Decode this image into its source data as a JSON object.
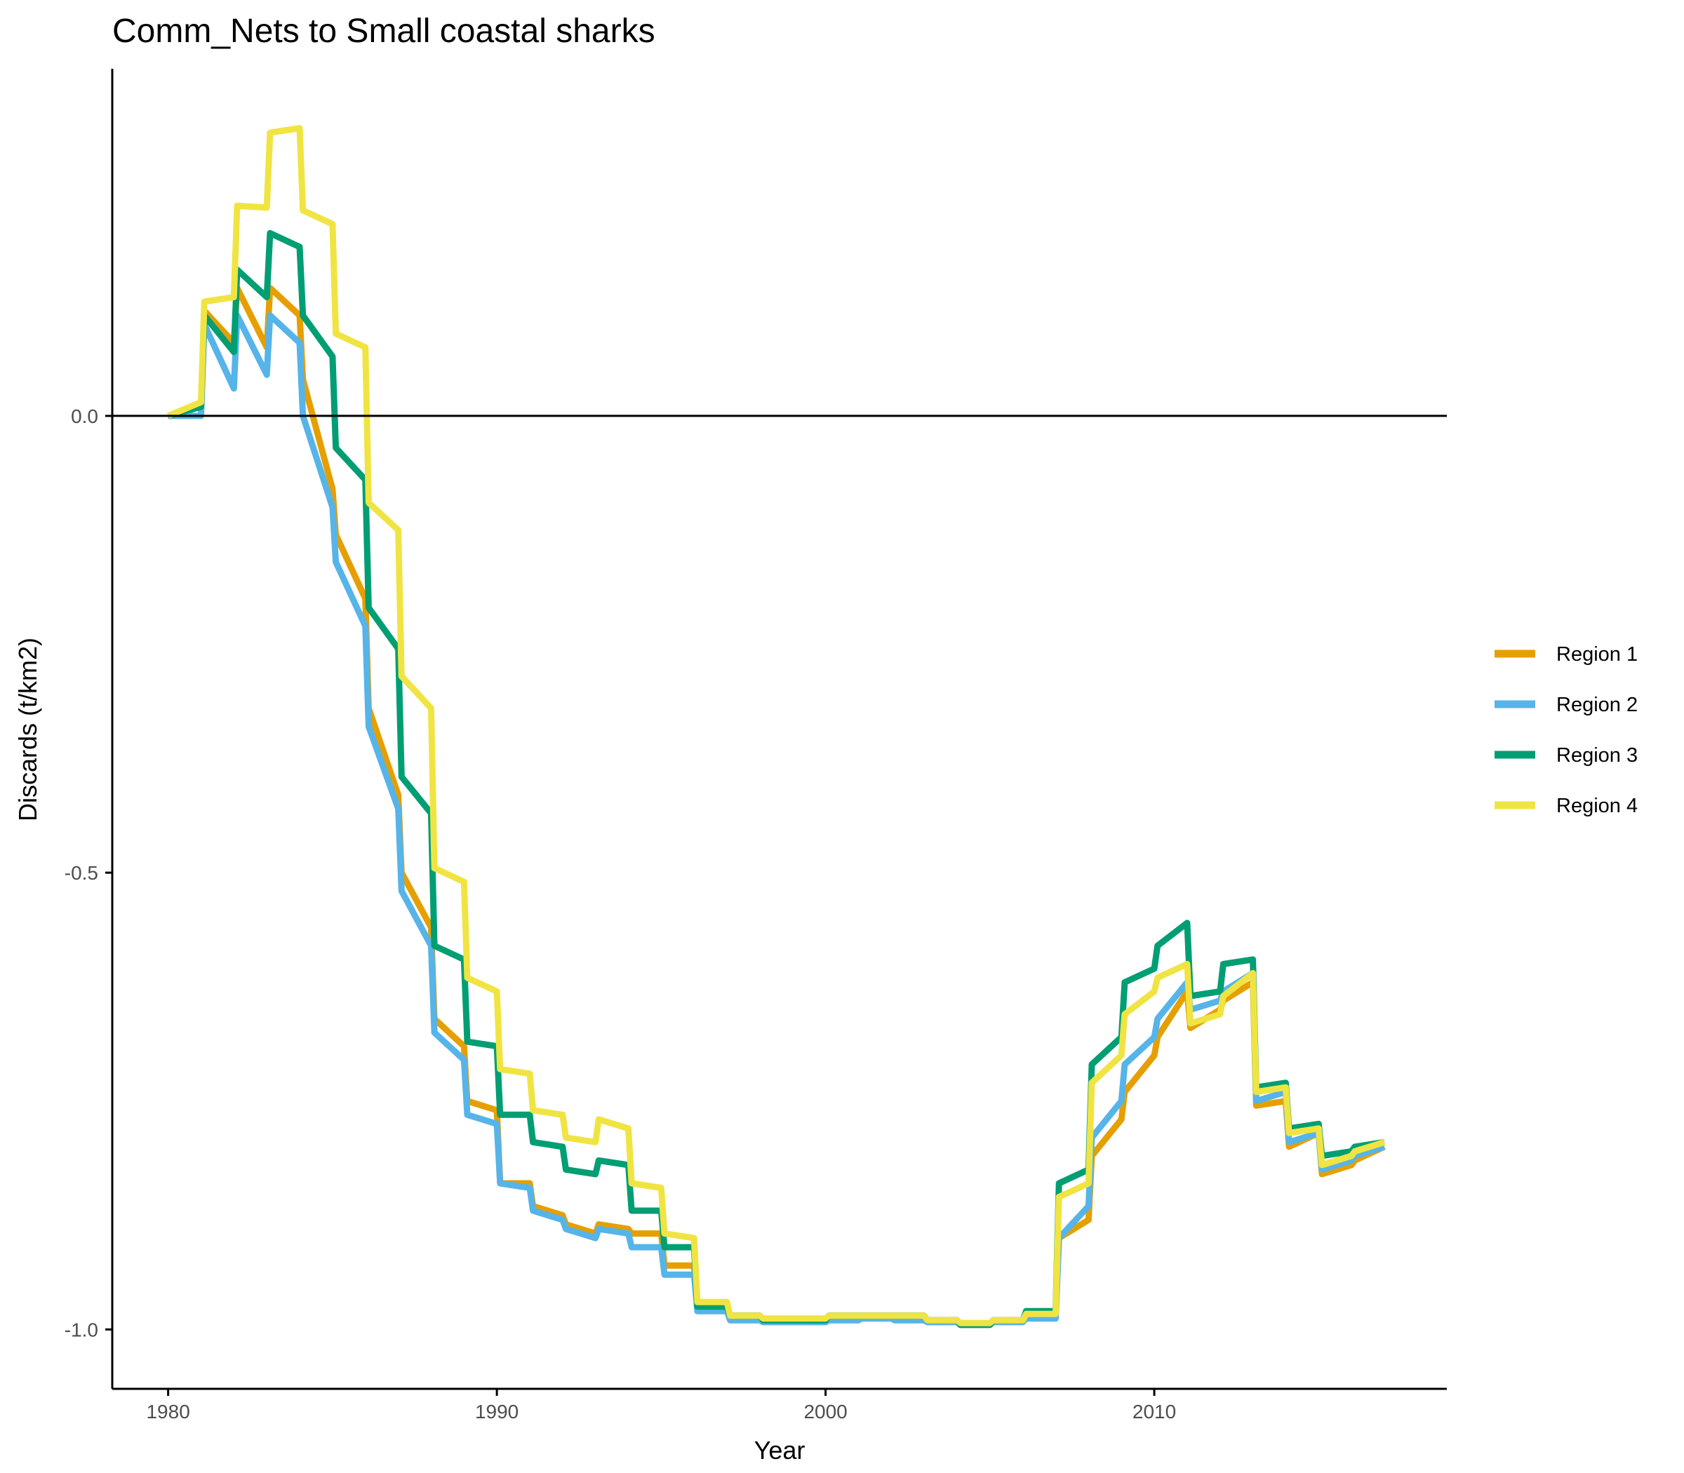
{
  "chart_data": {
    "type": "line",
    "title": "Comm_Nets to Small coastal sharks",
    "xlabel": "Year",
    "ylabel": "Discards (t/km2)",
    "xlim": [
      1978.3,
      2018.9
    ],
    "ylim": [
      -1.065,
      0.38
    ],
    "xticks": [
      1980,
      1990,
      2000,
      2010
    ],
    "xtick_labels": [
      "1980",
      "1990",
      "2000",
      "2010"
    ],
    "yticks": [
      0.0,
      -0.5,
      -1.0
    ],
    "ytick_labels": [
      "0.0",
      "-0.5",
      "-1.0"
    ],
    "hline": 0,
    "grid": false,
    "legend_position": "right",
    "series": [
      {
        "name": "Region 1",
        "color": "#E69F00",
        "points": [
          [
            1980.0,
            0.0
          ],
          [
            1981.0,
            0.01
          ],
          [
            1981.1,
            0.115
          ],
          [
            1982.0,
            0.08
          ],
          [
            1982.1,
            0.14
          ],
          [
            1983.0,
            0.075
          ],
          [
            1983.1,
            0.14
          ],
          [
            1984.0,
            0.11
          ],
          [
            1984.1,
            0.04
          ],
          [
            1985.0,
            -0.08
          ],
          [
            1985.1,
            -0.13
          ],
          [
            1986.0,
            -0.2
          ],
          [
            1986.1,
            -0.32
          ],
          [
            1987.0,
            -0.415
          ],
          [
            1987.1,
            -0.5
          ],
          [
            1988.0,
            -0.56
          ],
          [
            1988.1,
            -0.66
          ],
          [
            1989.0,
            -0.69
          ],
          [
            1989.1,
            -0.75
          ],
          [
            1990.0,
            -0.76
          ],
          [
            1990.1,
            -0.84
          ],
          [
            1991.0,
            -0.84
          ],
          [
            1991.1,
            -0.865
          ],
          [
            1992.0,
            -0.875
          ],
          [
            1992.1,
            -0.885
          ],
          [
            1993.0,
            -0.895
          ],
          [
            1993.1,
            -0.885
          ],
          [
            1994.0,
            -0.89
          ],
          [
            1994.1,
            -0.895
          ],
          [
            1995.0,
            -0.895
          ],
          [
            1995.1,
            -0.93
          ],
          [
            1996.0,
            -0.93
          ],
          [
            1996.1,
            -0.975
          ],
          [
            1997.0,
            -0.975
          ],
          [
            1997.1,
            -0.985
          ],
          [
            1998.0,
            -0.985
          ],
          [
            1998.1,
            -0.99
          ],
          [
            2000.0,
            -0.99
          ],
          [
            2000.1,
            -0.985
          ],
          [
            2001.0,
            -0.985
          ],
          [
            2001.1,
            -0.985
          ],
          [
            2002.0,
            -0.985
          ],
          [
            2002.1,
            -0.985
          ],
          [
            2003.0,
            -0.985
          ],
          [
            2003.1,
            -0.99
          ],
          [
            2004.0,
            -0.99
          ],
          [
            2004.1,
            -0.995
          ],
          [
            2005.0,
            -0.995
          ],
          [
            2005.1,
            -0.99
          ],
          [
            2006.0,
            -0.99
          ],
          [
            2006.1,
            -0.985
          ],
          [
            2007.0,
            -0.985
          ],
          [
            2007.1,
            -0.9
          ],
          [
            2008.0,
            -0.88
          ],
          [
            2008.1,
            -0.81
          ],
          [
            2009.0,
            -0.77
          ],
          [
            2009.1,
            -0.74
          ],
          [
            2010.0,
            -0.7
          ],
          [
            2010.1,
            -0.68
          ],
          [
            2011.0,
            -0.63
          ],
          [
            2011.1,
            -0.67
          ],
          [
            2012.0,
            -0.65
          ],
          [
            2012.1,
            -0.64
          ],
          [
            2013.0,
            -0.62
          ],
          [
            2013.1,
            -0.755
          ],
          [
            2014.0,
            -0.75
          ],
          [
            2014.1,
            -0.8
          ],
          [
            2015.0,
            -0.785
          ],
          [
            2015.1,
            -0.83
          ],
          [
            2016.0,
            -0.82
          ],
          [
            2016.1,
            -0.815
          ],
          [
            2017.0,
            -0.8
          ]
        ]
      },
      {
        "name": "Region 2",
        "color": "#56B4E9",
        "points": [
          [
            1980.0,
            0.0
          ],
          [
            1981.0,
            0.0
          ],
          [
            1981.1,
            0.1
          ],
          [
            1982.0,
            0.03
          ],
          [
            1982.1,
            0.11
          ],
          [
            1983.0,
            0.045
          ],
          [
            1983.1,
            0.11
          ],
          [
            1984.0,
            0.08
          ],
          [
            1984.1,
            0.0
          ],
          [
            1985.0,
            -0.1
          ],
          [
            1985.1,
            -0.16
          ],
          [
            1986.0,
            -0.23
          ],
          [
            1986.1,
            -0.34
          ],
          [
            1987.0,
            -0.43
          ],
          [
            1987.1,
            -0.52
          ],
          [
            1988.0,
            -0.58
          ],
          [
            1988.1,
            -0.675
          ],
          [
            1989.0,
            -0.705
          ],
          [
            1989.1,
            -0.765
          ],
          [
            1990.0,
            -0.775
          ],
          [
            1990.1,
            -0.84
          ],
          [
            1991.0,
            -0.845
          ],
          [
            1991.1,
            -0.87
          ],
          [
            1992.0,
            -0.88
          ],
          [
            1992.1,
            -0.89
          ],
          [
            1993.0,
            -0.9
          ],
          [
            1993.1,
            -0.89
          ],
          [
            1994.0,
            -0.895
          ],
          [
            1994.1,
            -0.91
          ],
          [
            1995.0,
            -0.91
          ],
          [
            1995.1,
            -0.94
          ],
          [
            1996.0,
            -0.94
          ],
          [
            1996.1,
            -0.98
          ],
          [
            1997.0,
            -0.98
          ],
          [
            1997.1,
            -0.99
          ],
          [
            1998.0,
            -0.99
          ],
          [
            1998.1,
            -0.992
          ],
          [
            2000.0,
            -0.992
          ],
          [
            2000.1,
            -0.99
          ],
          [
            2001.0,
            -0.99
          ],
          [
            2001.1,
            -0.988
          ],
          [
            2002.0,
            -0.988
          ],
          [
            2002.1,
            -0.99
          ],
          [
            2003.0,
            -0.99
          ],
          [
            2003.1,
            -0.992
          ],
          [
            2004.0,
            -0.992
          ],
          [
            2004.1,
            -0.995
          ],
          [
            2005.0,
            -0.995
          ],
          [
            2005.1,
            -0.992
          ],
          [
            2006.0,
            -0.992
          ],
          [
            2006.1,
            -0.988
          ],
          [
            2007.0,
            -0.988
          ],
          [
            2007.1,
            -0.9
          ],
          [
            2008.0,
            -0.865
          ],
          [
            2008.1,
            -0.79
          ],
          [
            2009.0,
            -0.75
          ],
          [
            2009.1,
            -0.71
          ],
          [
            2010.0,
            -0.68
          ],
          [
            2010.1,
            -0.66
          ],
          [
            2011.0,
            -0.62
          ],
          [
            2011.1,
            -0.65
          ],
          [
            2012.0,
            -0.64
          ],
          [
            2012.1,
            -0.63
          ],
          [
            2013.0,
            -0.61
          ],
          [
            2013.1,
            -0.75
          ],
          [
            2014.0,
            -0.74
          ],
          [
            2014.1,
            -0.795
          ],
          [
            2015.0,
            -0.785
          ],
          [
            2015.1,
            -0.825
          ],
          [
            2016.0,
            -0.815
          ],
          [
            2016.1,
            -0.81
          ],
          [
            2017.0,
            -0.8
          ]
        ]
      },
      {
        "name": "Region 3",
        "color": "#009E73",
        "points": [
          [
            1980.0,
            0.0
          ],
          [
            1981.0,
            0.01
          ],
          [
            1981.1,
            0.11
          ],
          [
            1982.0,
            0.07
          ],
          [
            1982.1,
            0.16
          ],
          [
            1983.0,
            0.13
          ],
          [
            1983.1,
            0.2
          ],
          [
            1984.0,
            0.185
          ],
          [
            1984.1,
            0.11
          ],
          [
            1985.0,
            0.065
          ],
          [
            1985.1,
            -0.035
          ],
          [
            1986.0,
            -0.07
          ],
          [
            1986.1,
            -0.21
          ],
          [
            1987.0,
            -0.255
          ],
          [
            1987.1,
            -0.395
          ],
          [
            1988.0,
            -0.435
          ],
          [
            1988.1,
            -0.58
          ],
          [
            1989.0,
            -0.595
          ],
          [
            1989.1,
            -0.685
          ],
          [
            1990.0,
            -0.69
          ],
          [
            1990.1,
            -0.765
          ],
          [
            1991.0,
            -0.765
          ],
          [
            1991.1,
            -0.795
          ],
          [
            1992.0,
            -0.8
          ],
          [
            1992.1,
            -0.825
          ],
          [
            1993.0,
            -0.83
          ],
          [
            1993.1,
            -0.815
          ],
          [
            1994.0,
            -0.82
          ],
          [
            1994.1,
            -0.87
          ],
          [
            1995.0,
            -0.87
          ],
          [
            1995.1,
            -0.91
          ],
          [
            1996.0,
            -0.91
          ],
          [
            1996.1,
            -0.975
          ],
          [
            1997.0,
            -0.975
          ],
          [
            1997.1,
            -0.985
          ],
          [
            1998.0,
            -0.985
          ],
          [
            1998.1,
            -0.99
          ],
          [
            2000.0,
            -0.99
          ],
          [
            2000.1,
            -0.985
          ],
          [
            2001.0,
            -0.985
          ],
          [
            2001.1,
            -0.985
          ],
          [
            2002.0,
            -0.985
          ],
          [
            2002.1,
            -0.985
          ],
          [
            2003.0,
            -0.985
          ],
          [
            2003.1,
            -0.99
          ],
          [
            2004.0,
            -0.99
          ],
          [
            2004.1,
            -0.995
          ],
          [
            2005.0,
            -0.995
          ],
          [
            2005.1,
            -0.99
          ],
          [
            2006.0,
            -0.99
          ],
          [
            2006.1,
            -0.98
          ],
          [
            2007.0,
            -0.98
          ],
          [
            2007.1,
            -0.84
          ],
          [
            2008.0,
            -0.825
          ],
          [
            2008.1,
            -0.71
          ],
          [
            2009.0,
            -0.68
          ],
          [
            2009.1,
            -0.62
          ],
          [
            2010.0,
            -0.605
          ],
          [
            2010.1,
            -0.58
          ],
          [
            2011.0,
            -0.555
          ],
          [
            2011.1,
            -0.635
          ],
          [
            2012.0,
            -0.63
          ],
          [
            2012.1,
            -0.6
          ],
          [
            2013.0,
            -0.595
          ],
          [
            2013.1,
            -0.735
          ],
          [
            2014.0,
            -0.73
          ],
          [
            2014.1,
            -0.78
          ],
          [
            2015.0,
            -0.775
          ],
          [
            2015.1,
            -0.81
          ],
          [
            2016.0,
            -0.805
          ],
          [
            2016.1,
            -0.8
          ],
          [
            2017.0,
            -0.795
          ]
        ]
      },
      {
        "name": "Region 4",
        "color": "#F0E442",
        "points": [
          [
            1980.0,
            0.0
          ],
          [
            1981.0,
            0.015
          ],
          [
            1981.1,
            0.125
          ],
          [
            1982.0,
            0.13
          ],
          [
            1982.1,
            0.23
          ],
          [
            1983.0,
            0.228
          ],
          [
            1983.1,
            0.31
          ],
          [
            1984.0,
            0.315
          ],
          [
            1984.1,
            0.225
          ],
          [
            1985.0,
            0.21
          ],
          [
            1985.1,
            0.09
          ],
          [
            1986.0,
            0.075
          ],
          [
            1986.1,
            -0.095
          ],
          [
            1987.0,
            -0.125
          ],
          [
            1987.1,
            -0.285
          ],
          [
            1988.0,
            -0.32
          ],
          [
            1988.1,
            -0.495
          ],
          [
            1989.0,
            -0.51
          ],
          [
            1989.1,
            -0.615
          ],
          [
            1990.0,
            -0.63
          ],
          [
            1990.1,
            -0.715
          ],
          [
            1991.0,
            -0.72
          ],
          [
            1991.1,
            -0.76
          ],
          [
            1992.0,
            -0.765
          ],
          [
            1992.1,
            -0.79
          ],
          [
            1993.0,
            -0.795
          ],
          [
            1993.1,
            -0.77
          ],
          [
            1994.0,
            -0.78
          ],
          [
            1994.1,
            -0.84
          ],
          [
            1995.0,
            -0.845
          ],
          [
            1995.1,
            -0.895
          ],
          [
            1996.0,
            -0.9
          ],
          [
            1996.1,
            -0.97
          ],
          [
            1997.0,
            -0.97
          ],
          [
            1997.1,
            -0.985
          ],
          [
            1998.0,
            -0.985
          ],
          [
            1998.1,
            -0.988
          ],
          [
            2000.0,
            -0.988
          ],
          [
            2000.1,
            -0.985
          ],
          [
            2001.0,
            -0.985
          ],
          [
            2001.1,
            -0.985
          ],
          [
            2002.0,
            -0.985
          ],
          [
            2002.1,
            -0.985
          ],
          [
            2003.0,
            -0.985
          ],
          [
            2003.1,
            -0.99
          ],
          [
            2004.0,
            -0.99
          ],
          [
            2004.1,
            -0.993
          ],
          [
            2005.0,
            -0.993
          ],
          [
            2005.1,
            -0.99
          ],
          [
            2006.0,
            -0.99
          ],
          [
            2006.1,
            -0.983
          ],
          [
            2007.0,
            -0.983
          ],
          [
            2007.1,
            -0.855
          ],
          [
            2008.0,
            -0.84
          ],
          [
            2008.1,
            -0.73
          ],
          [
            2009.0,
            -0.7
          ],
          [
            2009.1,
            -0.655
          ],
          [
            2010.0,
            -0.63
          ],
          [
            2010.1,
            -0.615
          ],
          [
            2011.0,
            -0.6
          ],
          [
            2011.1,
            -0.665
          ],
          [
            2012.0,
            -0.655
          ],
          [
            2012.1,
            -0.635
          ],
          [
            2013.0,
            -0.61
          ],
          [
            2013.1,
            -0.74
          ],
          [
            2014.0,
            -0.735
          ],
          [
            2014.1,
            -0.785
          ],
          [
            2015.0,
            -0.78
          ],
          [
            2015.1,
            -0.82
          ],
          [
            2016.0,
            -0.81
          ],
          [
            2016.1,
            -0.805
          ],
          [
            2017.0,
            -0.795
          ]
        ]
      }
    ]
  }
}
